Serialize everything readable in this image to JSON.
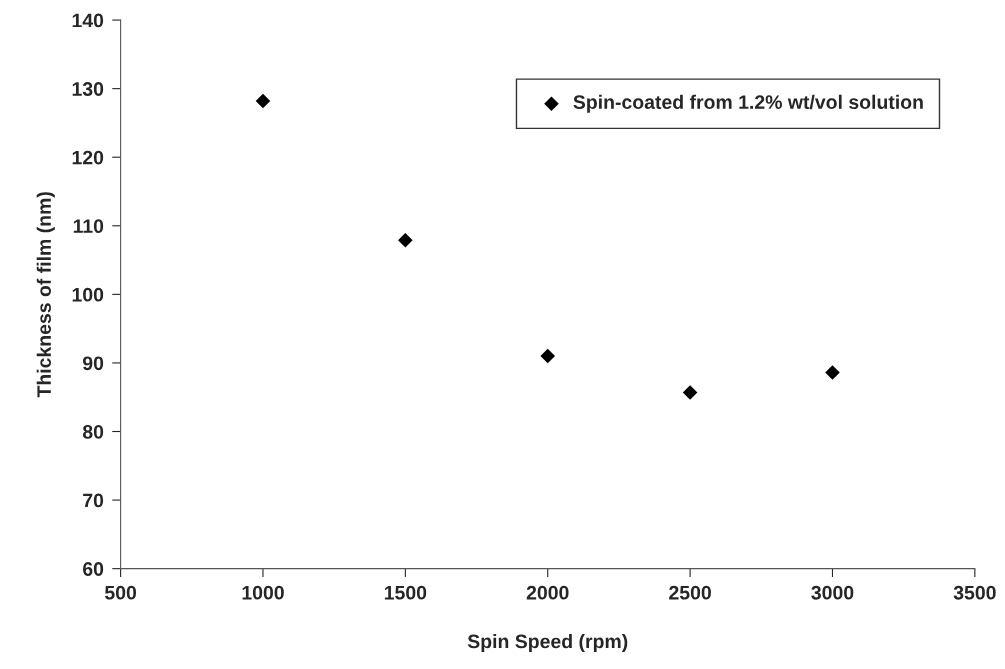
{
  "chart_data": {
    "type": "scatter",
    "xlabel": "Spin Speed (rpm)",
    "ylabel": "Thickness of film (nm)",
    "x": [
      1000,
      1500,
      2000,
      2500,
      3000
    ],
    "series": [
      {
        "name": "Spin-coated from 1.2% wt/vol solution",
        "color": "#000000",
        "values": [
          128.2,
          107.9,
          91.0,
          85.7,
          88.6
        ]
      }
    ],
    "xlim": [
      500,
      3500
    ],
    "xticks": [
      500,
      1000,
      1500,
      2000,
      2500,
      3000,
      3500
    ],
    "ylim": [
      60,
      140
    ],
    "yticks": [
      60,
      70,
      80,
      90,
      100,
      110,
      120,
      130,
      140
    ],
    "marker": "diamond",
    "grid": false,
    "legend": "top right"
  }
}
